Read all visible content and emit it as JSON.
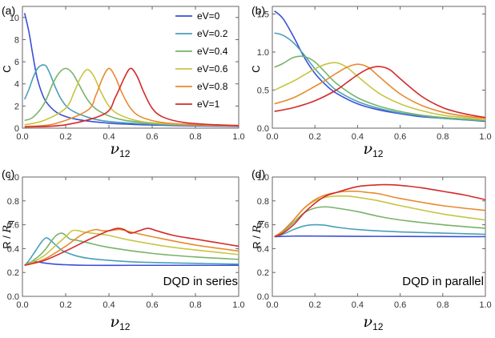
{
  "chart_data": [
    {
      "panel_label": "(a)",
      "type": "line",
      "ylabel": "C",
      "xlabel_main": "ν",
      "xlabel_sub": "12",
      "xlim": [
        0,
        1.0
      ],
      "ylim": [
        0,
        11
      ],
      "xticks": [
        "0.0",
        "0.2",
        "0.4",
        "0.6",
        "0.8",
        "1.0"
      ],
      "yticks": [
        0,
        2,
        4,
        6,
        8,
        10
      ],
      "legend_position": "top-right",
      "series": [
        {
          "name": "eV=0",
          "color": "#3a4fd6",
          "x": [
            0.01,
            0.03,
            0.05,
            0.07,
            0.1,
            0.13,
            0.16,
            0.2,
            0.25,
            0.3,
            0.4,
            0.5,
            0.6,
            0.8,
            1.0
          ],
          "y": [
            10.4,
            8.7,
            6.4,
            4.4,
            2.7,
            1.9,
            1.4,
            1.05,
            0.8,
            0.65,
            0.45,
            0.35,
            0.28,
            0.2,
            0.16
          ]
        },
        {
          "name": "eV=0.2",
          "color": "#4a9fb8",
          "x": [
            0.01,
            0.03,
            0.05,
            0.07,
            0.09,
            0.1,
            0.11,
            0.13,
            0.15,
            0.18,
            0.22,
            0.3,
            0.4,
            0.6,
            0.8,
            1.0
          ],
          "y": [
            2.6,
            3.5,
            4.6,
            5.4,
            5.7,
            5.7,
            5.6,
            4.8,
            3.8,
            2.6,
            1.7,
            1.0,
            0.6,
            0.35,
            0.25,
            0.2
          ]
        },
        {
          "name": "eV=0.4",
          "color": "#79b26a",
          "x": [
            0.01,
            0.05,
            0.1,
            0.14,
            0.17,
            0.2,
            0.23,
            0.26,
            0.3,
            0.35,
            0.45,
            0.6,
            0.8,
            1.0
          ],
          "y": [
            0.7,
            1.0,
            2.2,
            4.0,
            5.0,
            5.4,
            5.0,
            4.0,
            2.6,
            1.6,
            0.8,
            0.45,
            0.3,
            0.22
          ]
        },
        {
          "name": "eV=0.6",
          "color": "#c8c544",
          "x": [
            0.01,
            0.1,
            0.2,
            0.24,
            0.27,
            0.3,
            0.33,
            0.36,
            0.4,
            0.45,
            0.55,
            0.7,
            0.85,
            1.0
          ],
          "y": [
            0.3,
            0.7,
            1.8,
            3.3,
            4.6,
            5.3,
            4.7,
            3.4,
            2.0,
            1.2,
            0.6,
            0.35,
            0.26,
            0.2
          ]
        },
        {
          "name": "eV=0.8",
          "color": "#e88a2e",
          "x": [
            0.01,
            0.15,
            0.3,
            0.34,
            0.37,
            0.4,
            0.43,
            0.46,
            0.5,
            0.55,
            0.65,
            0.8,
            1.0
          ],
          "y": [
            0.15,
            0.4,
            1.6,
            3.0,
            4.5,
            5.4,
            4.6,
            3.2,
            1.8,
            1.0,
            0.5,
            0.3,
            0.2
          ]
        },
        {
          "name": "eV=1",
          "color": "#d42a2a",
          "x": [
            0.01,
            0.2,
            0.38,
            0.43,
            0.47,
            0.5,
            0.53,
            0.56,
            0.6,
            0.65,
            0.75,
            0.9,
            1.0
          ],
          "y": [
            0.1,
            0.3,
            1.3,
            2.8,
            4.5,
            5.4,
            4.7,
            3.3,
            1.8,
            1.0,
            0.5,
            0.3,
            0.24
          ]
        }
      ]
    },
    {
      "panel_label": "(b)",
      "type": "line",
      "ylabel": "C",
      "xlabel_main": "ν",
      "xlabel_sub": "12",
      "xlim": [
        0,
        1.0
      ],
      "ylim": [
        0,
        1.6
      ],
      "xticks": [
        "0.0",
        "0.2",
        "0.4",
        "0.6",
        "0.8",
        "1.0"
      ],
      "yticks": [
        "0.0",
        "0.5",
        "1.0",
        "1.5"
      ],
      "series": [
        {
          "name": "eV=0",
          "color": "#3a4fd6",
          "x": [
            0.01,
            0.05,
            0.1,
            0.15,
            0.2,
            0.25,
            0.3,
            0.4,
            0.5,
            0.6,
            0.7,
            0.8,
            0.9,
            1.0
          ],
          "y": [
            1.54,
            1.44,
            1.2,
            0.93,
            0.72,
            0.57,
            0.46,
            0.32,
            0.24,
            0.19,
            0.15,
            0.13,
            0.11,
            0.09
          ]
        },
        {
          "name": "eV=0.2",
          "color": "#4a9fb8",
          "x": [
            0.01,
            0.05,
            0.1,
            0.15,
            0.2,
            0.25,
            0.3,
            0.4,
            0.5,
            0.6,
            0.7,
            0.8,
            0.9,
            1.0
          ],
          "y": [
            1.25,
            1.22,
            1.12,
            0.96,
            0.78,
            0.63,
            0.5,
            0.35,
            0.26,
            0.2,
            0.16,
            0.13,
            0.11,
            0.1
          ]
        },
        {
          "name": "eV=0.4",
          "color": "#79b26a",
          "x": [
            0.01,
            0.05,
            0.1,
            0.15,
            0.2,
            0.25,
            0.3,
            0.4,
            0.5,
            0.6,
            0.7,
            0.8,
            0.9,
            1.0
          ],
          "y": [
            0.8,
            0.85,
            0.93,
            0.94,
            0.87,
            0.73,
            0.59,
            0.4,
            0.29,
            0.22,
            0.17,
            0.14,
            0.12,
            0.1
          ]
        },
        {
          "name": "eV=0.6",
          "color": "#c8c544",
          "x": [
            0.01,
            0.1,
            0.15,
            0.2,
            0.25,
            0.3,
            0.35,
            0.4,
            0.5,
            0.6,
            0.7,
            0.8,
            0.9,
            1.0
          ],
          "y": [
            0.5,
            0.62,
            0.7,
            0.78,
            0.84,
            0.86,
            0.8,
            0.68,
            0.46,
            0.32,
            0.23,
            0.17,
            0.14,
            0.11
          ]
        },
        {
          "name": "eV=0.8",
          "color": "#e88a2e",
          "x": [
            0.01,
            0.1,
            0.2,
            0.25,
            0.3,
            0.35,
            0.4,
            0.45,
            0.5,
            0.6,
            0.7,
            0.8,
            0.9,
            1.0
          ],
          "y": [
            0.32,
            0.4,
            0.55,
            0.63,
            0.72,
            0.8,
            0.84,
            0.8,
            0.68,
            0.45,
            0.3,
            0.21,
            0.16,
            0.13
          ]
        },
        {
          "name": "eV=1",
          "color": "#d42a2a",
          "x": [
            0.01,
            0.1,
            0.2,
            0.3,
            0.35,
            0.4,
            0.45,
            0.5,
            0.55,
            0.6,
            0.7,
            0.8,
            0.9,
            1.0
          ],
          "y": [
            0.22,
            0.27,
            0.36,
            0.5,
            0.6,
            0.7,
            0.78,
            0.81,
            0.77,
            0.65,
            0.42,
            0.27,
            0.19,
            0.14
          ]
        }
      ]
    },
    {
      "panel_label": "(c)",
      "type": "line",
      "ylabel_main": "R / ",
      "ylabel_var": "R",
      "ylabel_sub": "q",
      "xlabel_main": "ν",
      "xlabel_sub": "12",
      "annotation": "DQD in series",
      "xlim": [
        0,
        1.0
      ],
      "ylim": [
        0,
        1.0
      ],
      "xticks": [
        "0.0",
        "0.2",
        "0.4",
        "0.6",
        "0.8",
        "1.0"
      ],
      "yticks": [
        "0.0",
        "0.2",
        "0.4",
        "0.6",
        "0.8",
        "1.0"
      ],
      "series": [
        {
          "name": "eV=0",
          "color": "#3a4fd6",
          "x": [
            0.01,
            0.03,
            0.05,
            0.07,
            0.1,
            0.15,
            0.2,
            0.3,
            0.5,
            0.7,
            1.0
          ],
          "y": [
            0.26,
            0.28,
            0.29,
            0.29,
            0.28,
            0.27,
            0.265,
            0.26,
            0.26,
            0.26,
            0.26
          ]
        },
        {
          "name": "eV=0.2",
          "color": "#4a9fb8",
          "x": [
            0.01,
            0.03,
            0.06,
            0.09,
            0.11,
            0.13,
            0.16,
            0.2,
            0.3,
            0.5,
            0.7,
            1.0
          ],
          "y": [
            0.26,
            0.3,
            0.38,
            0.46,
            0.49,
            0.47,
            0.42,
            0.37,
            0.32,
            0.29,
            0.28,
            0.27
          ]
        },
        {
          "name": "eV=0.4",
          "color": "#79b26a",
          "x": [
            0.01,
            0.05,
            0.1,
            0.15,
            0.18,
            0.2,
            0.22,
            0.25,
            0.3,
            0.4,
            0.6,
            0.8,
            1.0
          ],
          "y": [
            0.26,
            0.3,
            0.38,
            0.5,
            0.53,
            0.51,
            0.48,
            0.47,
            0.45,
            0.41,
            0.36,
            0.33,
            0.31
          ]
        },
        {
          "name": "eV=0.6",
          "color": "#c8c544",
          "x": [
            0.01,
            0.05,
            0.1,
            0.15,
            0.2,
            0.23,
            0.26,
            0.28,
            0.32,
            0.4,
            0.5,
            0.7,
            1.0
          ],
          "y": [
            0.26,
            0.29,
            0.34,
            0.42,
            0.5,
            0.55,
            0.55,
            0.54,
            0.53,
            0.51,
            0.47,
            0.41,
            0.35
          ]
        },
        {
          "name": "eV=0.8",
          "color": "#e88a2e",
          "x": [
            0.01,
            0.1,
            0.2,
            0.26,
            0.3,
            0.34,
            0.37,
            0.4,
            0.45,
            0.5,
            0.6,
            0.8,
            1.0
          ],
          "y": [
            0.26,
            0.31,
            0.42,
            0.5,
            0.54,
            0.56,
            0.55,
            0.55,
            0.56,
            0.54,
            0.5,
            0.43,
            0.38
          ]
        },
        {
          "name": "eV=1",
          "color": "#d42a2a",
          "x": [
            0.01,
            0.1,
            0.2,
            0.3,
            0.36,
            0.4,
            0.44,
            0.47,
            0.5,
            0.54,
            0.58,
            0.62,
            0.7,
            0.8,
            0.9,
            1.0
          ],
          "y": [
            0.26,
            0.3,
            0.38,
            0.47,
            0.52,
            0.55,
            0.57,
            0.56,
            0.53,
            0.55,
            0.57,
            0.55,
            0.51,
            0.48,
            0.45,
            0.42
          ]
        }
      ]
    },
    {
      "panel_label": "(d)",
      "type": "line",
      "ylabel_main": "R / ",
      "ylabel_var": "R",
      "ylabel_sub": "q",
      "xlabel_main": "ν",
      "xlabel_sub": "12",
      "annotation": "DQD in parallel",
      "xlim": [
        0,
        1.0
      ],
      "ylim": [
        0,
        1.0
      ],
      "xticks": [
        "0.0",
        "0.2",
        "0.4",
        "0.6",
        "0.8",
        "1.0"
      ],
      "yticks": [
        "0.0",
        "0.2",
        "0.4",
        "0.6",
        "0.8",
        "1.0"
      ],
      "series": [
        {
          "name": "eV=0",
          "color": "#3a4fd6",
          "x": [
            0.01,
            0.1,
            0.2,
            0.4,
            0.6,
            0.8,
            1.0
          ],
          "y": [
            0.5,
            0.505,
            0.505,
            0.503,
            0.502,
            0.501,
            0.5
          ]
        },
        {
          "name": "eV=0.2",
          "color": "#4a9fb8",
          "x": [
            0.01,
            0.05,
            0.1,
            0.15,
            0.2,
            0.25,
            0.3,
            0.4,
            0.6,
            0.8,
            1.0
          ],
          "y": [
            0.5,
            0.52,
            0.56,
            0.59,
            0.6,
            0.595,
            0.58,
            0.56,
            0.54,
            0.53,
            0.52
          ]
        },
        {
          "name": "eV=0.4",
          "color": "#79b26a",
          "x": [
            0.01,
            0.05,
            0.1,
            0.15,
            0.2,
            0.25,
            0.3,
            0.4,
            0.5,
            0.6,
            0.8,
            1.0
          ],
          "y": [
            0.5,
            0.54,
            0.62,
            0.7,
            0.74,
            0.75,
            0.74,
            0.71,
            0.67,
            0.64,
            0.6,
            0.57
          ]
        },
        {
          "name": "eV=0.6",
          "color": "#c8c544",
          "x": [
            0.01,
            0.05,
            0.1,
            0.15,
            0.2,
            0.25,
            0.3,
            0.35,
            0.4,
            0.5,
            0.6,
            0.8,
            1.0
          ],
          "y": [
            0.5,
            0.55,
            0.64,
            0.74,
            0.8,
            0.83,
            0.84,
            0.84,
            0.83,
            0.8,
            0.76,
            0.69,
            0.64
          ]
        },
        {
          "name": "eV=0.8",
          "color": "#e88a2e",
          "x": [
            0.01,
            0.05,
            0.1,
            0.15,
            0.2,
            0.25,
            0.3,
            0.35,
            0.4,
            0.45,
            0.5,
            0.6,
            0.8,
            1.0
          ],
          "y": [
            0.5,
            0.55,
            0.64,
            0.74,
            0.81,
            0.85,
            0.87,
            0.88,
            0.88,
            0.87,
            0.86,
            0.82,
            0.76,
            0.72
          ]
        },
        {
          "name": "eV=1",
          "color": "#d42a2a",
          "x": [
            0.01,
            0.05,
            0.1,
            0.15,
            0.2,
            0.25,
            0.3,
            0.4,
            0.5,
            0.55,
            0.6,
            0.7,
            0.8,
            0.9,
            1.0
          ],
          "y": [
            0.5,
            0.53,
            0.6,
            0.7,
            0.78,
            0.84,
            0.87,
            0.92,
            0.935,
            0.935,
            0.93,
            0.91,
            0.88,
            0.85,
            0.81
          ]
        }
      ]
    }
  ]
}
